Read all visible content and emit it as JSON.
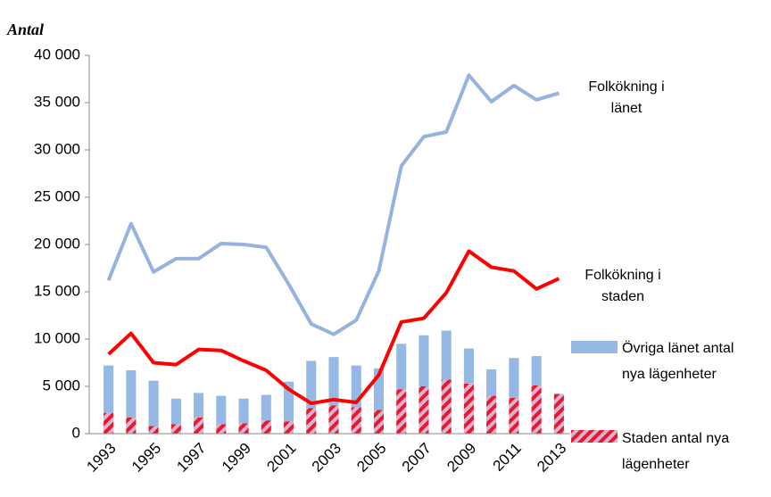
{
  "chart_data": {
    "type": "combo",
    "y_label": "Antal",
    "categories": [
      "1993",
      null,
      "1995",
      null,
      "1997",
      null,
      "1999",
      null,
      "2001",
      null,
      "2003",
      null,
      "2005",
      null,
      "2007",
      null,
      "2009",
      null,
      "2011",
      null,
      "2013"
    ],
    "ylim": [
      0,
      40000
    ],
    "yticks": [
      {
        "value": 0,
        "label": "0"
      },
      {
        "value": 5000,
        "label": "5 000"
      },
      {
        "value": 10000,
        "label": "10 000"
      },
      {
        "value": 15000,
        "label": "15 000"
      },
      {
        "value": 20000,
        "label": "20 000"
      },
      {
        "value": 25000,
        "label": "25 000"
      },
      {
        "value": 30000,
        "label": "30 000"
      },
      {
        "value": 35000,
        "label": "35 000"
      },
      {
        "value": 40000,
        "label": "40 000"
      }
    ],
    "grid": false,
    "series": [
      {
        "name": "Staden antal nya lägenheter",
        "kind": "bar",
        "color": "#e8192c",
        "values": [
          2200,
          1700,
          800,
          1000,
          1700,
          1000,
          1100,
          1400,
          1300,
          2700,
          3000,
          2800,
          2500,
          4700,
          5000,
          5700,
          5300,
          4000,
          3800,
          5100,
          4200
        ]
      },
      {
        "name": "Övriga länet antal nya lägenheter",
        "kind": "bar",
        "color": "#95b8e4",
        "values": [
          5000,
          5000,
          4800,
          2700,
          2600,
          3000,
          2600,
          2700,
          4200,
          5000,
          5100,
          4400,
          4400,
          4800,
          5400,
          5200,
          3700,
          2800,
          4200,
          3100,
          0
        ]
      },
      {
        "name": "Folkökning i länet",
        "kind": "line",
        "color": "#95b3de",
        "values": [
          16200,
          22200,
          17100,
          18500,
          18500,
          20100,
          20000,
          19700,
          15800,
          11600,
          10500,
          12000,
          17200,
          28300,
          31400,
          31900,
          37900,
          35100,
          36800,
          35300,
          36000
        ]
      },
      {
        "name": "Folkökning i staden",
        "kind": "line",
        "color": "#ff0000",
        "values": [
          8400,
          10600,
          7500,
          7300,
          8900,
          8800,
          7700,
          6700,
          4700,
          3200,
          3600,
          3300,
          6200,
          11800,
          12200,
          14900,
          19300,
          17600,
          17200,
          15300,
          16400
        ]
      }
    ]
  }
}
